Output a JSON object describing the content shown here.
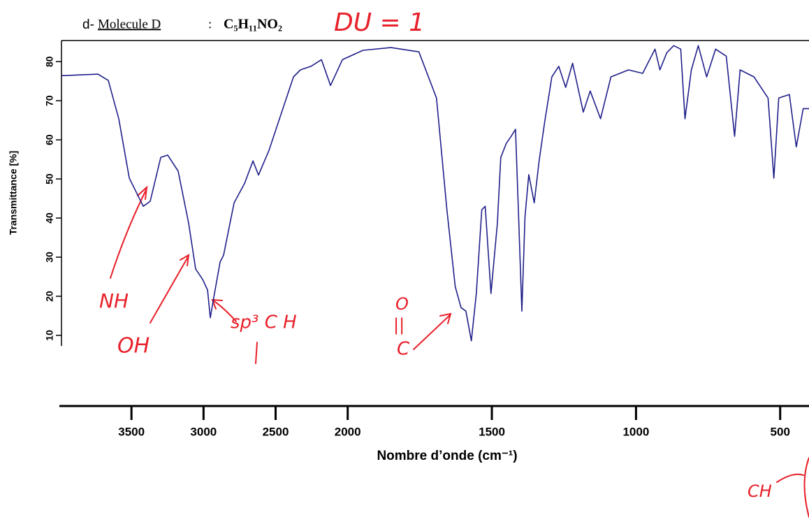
{
  "chart_data": {
    "type": "line",
    "title_prefix": "d-",
    "title": "Molecule D",
    "title_separator": ":",
    "formula": "C₅H₁₁NO₂",
    "x_label": "Nombre d’onde (cm⁻¹)",
    "y_label": "Transmittance [%]",
    "xlim": [
      4000,
      400
    ],
    "x_scale_break": 2000,
    "x_scale_factor": 2,
    "xticks": [
      3500,
      3000,
      2500,
      2000,
      1500,
      1000,
      500
    ],
    "ylim": [
      7.3,
      85.4
    ],
    "yticks": [
      10,
      20,
      30,
      40,
      50,
      60,
      70,
      80
    ],
    "x": [
      4000,
      3733,
      3661,
      3588,
      3515,
      3418,
      3370,
      3297,
      3249,
      3176,
      3103,
      3055,
      3006,
      2972,
      2953,
      2924,
      2885,
      2861,
      2788,
      2715,
      2657,
      2619,
      2546,
      2473,
      2376,
      2328,
      2255,
      2182,
      2119,
      2037,
      1947,
      1850,
      1753,
      1692,
      1656,
      1627,
      1607,
      1590,
      1571,
      1554,
      1535,
      1523,
      1503,
      1481,
      1469,
      1450,
      1433,
      1418,
      1408,
      1396,
      1385,
      1372,
      1353,
      1336,
      1317,
      1292,
      1268,
      1244,
      1220,
      1183,
      1159,
      1123,
      1087,
      1026,
      977,
      934,
      917,
      893,
      869,
      845,
      830,
      808,
      784,
      755,
      724,
      687,
      658,
      639,
      591,
      542,
      522,
      505,
      468,
      444,
      420,
      400
    ],
    "series": [
      {
        "name": "Transmittance",
        "color": "#1f1f8a",
        "values": [
          76.4,
          76.8,
          75.2,
          65.4,
          50.2,
          43.0,
          44.3,
          55.5,
          56.1,
          52.0,
          38.6,
          27.0,
          24.3,
          21.6,
          14.5,
          20.7,
          28.8,
          30.5,
          43.9,
          48.9,
          54.6,
          51.0,
          57.3,
          65.4,
          76.1,
          77.9,
          78.8,
          80.5,
          73.9,
          80.5,
          82.9,
          83.6,
          82.5,
          70.7,
          42.1,
          22.5,
          17.1,
          16.2,
          8.6,
          20.7,
          42.1,
          43.0,
          20.7,
          38.6,
          55.5,
          59.1,
          60.9,
          62.7,
          42.1,
          16.2,
          40.4,
          51.1,
          43.9,
          54.6,
          64.5,
          76.1,
          78.8,
          73.4,
          79.6,
          67.1,
          72.5,
          65.4,
          76.1,
          77.9,
          77.0,
          83.2,
          77.9,
          82.3,
          84.1,
          83.2,
          65.4,
          77.9,
          84.1,
          76.1,
          83.2,
          81.4,
          60.9,
          77.9,
          76.1,
          70.7,
          50.2,
          70.7,
          71.6,
          58.2,
          68.0,
          68.0
        ]
      }
    ],
    "annotations": [
      "DU = 1",
      "NH",
      "OH",
      "sp³ C H",
      "O",
      "||",
      "C",
      "CH"
    ]
  }
}
